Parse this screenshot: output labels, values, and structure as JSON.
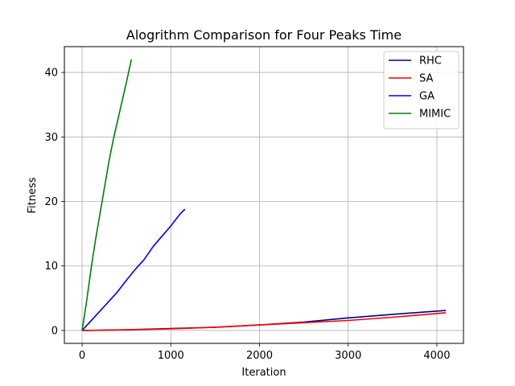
{
  "chart_data": {
    "type": "line",
    "title": "Alogrithm Comparison for Four Peaks Time",
    "xlabel": "Iteration",
    "ylabel": "Fitness",
    "xlim": [
      -200,
      4300
    ],
    "ylim": [
      -2,
      44
    ],
    "xticks": [
      0,
      1000,
      2000,
      3000,
      4000
    ],
    "yticks": [
      0,
      10,
      20,
      30,
      40
    ],
    "grid": true,
    "legend_position": "top-right",
    "series": [
      {
        "name": "RHC",
        "color": "#00008b",
        "points": [
          [
            0,
            0
          ],
          [
            500,
            0.12
          ],
          [
            1000,
            0.3
          ],
          [
            1500,
            0.5
          ],
          [
            2000,
            0.85
          ],
          [
            2500,
            1.3
          ],
          [
            3000,
            1.95
          ],
          [
            3500,
            2.5
          ],
          [
            4100,
            3.1
          ]
        ]
      },
      {
        "name": "SA",
        "color": "#ff0000",
        "points": [
          [
            0,
            0
          ],
          [
            500,
            0.1
          ],
          [
            1000,
            0.25
          ],
          [
            1500,
            0.5
          ],
          [
            2000,
            0.85
          ],
          [
            2500,
            1.2
          ],
          [
            3000,
            1.55
          ],
          [
            3500,
            2.05
          ],
          [
            4100,
            2.75
          ]
        ]
      },
      {
        "name": "GA",
        "color": "#0000ff",
        "points": [
          [
            0,
            0
          ],
          [
            100,
            1.5
          ],
          [
            200,
            3.0
          ],
          [
            300,
            4.5
          ],
          [
            400,
            6.0
          ],
          [
            500,
            7.8
          ],
          [
            600,
            9.5
          ],
          [
            700,
            11.0
          ],
          [
            800,
            13.0
          ],
          [
            900,
            14.6
          ],
          [
            1000,
            16.2
          ],
          [
            1100,
            18.0
          ],
          [
            1160,
            18.8
          ]
        ]
      },
      {
        "name": "MIMIC",
        "color": "#008000",
        "points": [
          [
            0,
            0
          ],
          [
            50,
            4.5
          ],
          [
            100,
            9.5
          ],
          [
            150,
            14.0
          ],
          [
            200,
            18.0
          ],
          [
            250,
            22.0
          ],
          [
            300,
            26.0
          ],
          [
            350,
            29.5
          ],
          [
            400,
            32.5
          ],
          [
            450,
            35.5
          ],
          [
            500,
            38.5
          ],
          [
            555,
            42.0
          ]
        ]
      }
    ]
  }
}
